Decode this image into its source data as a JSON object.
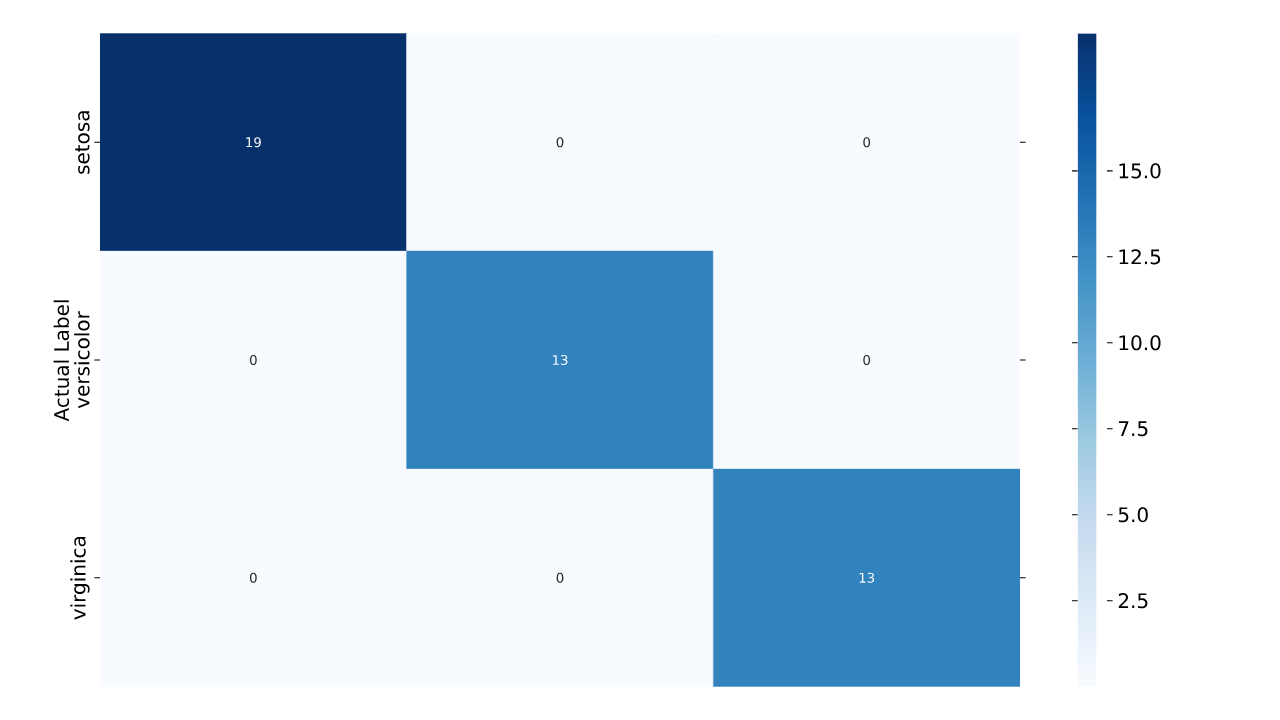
{
  "chart_data": {
    "type": "heatmap",
    "ylabel": "Actual Label",
    "categories": [
      null,
      null,
      null
    ],
    "y_categories": [
      "setosa",
      "versicolor",
      "virginica"
    ],
    "cells": [
      [
        19,
        0,
        0
      ],
      [
        0,
        13,
        0
      ],
      [
        0,
        0,
        13
      ]
    ],
    "data_labels": true,
    "clim": [
      0,
      19
    ],
    "cticks": [
      {
        "value": 2.5,
        "label": "2.5"
      },
      {
        "value": 5,
        "label": "5.0"
      },
      {
        "value": 7.5,
        "label": "7.5"
      },
      {
        "value": 10,
        "label": "10.0"
      },
      {
        "value": 12.5,
        "label": "12.5"
      },
      {
        "value": 15,
        "label": "15.0"
      }
    ]
  }
}
